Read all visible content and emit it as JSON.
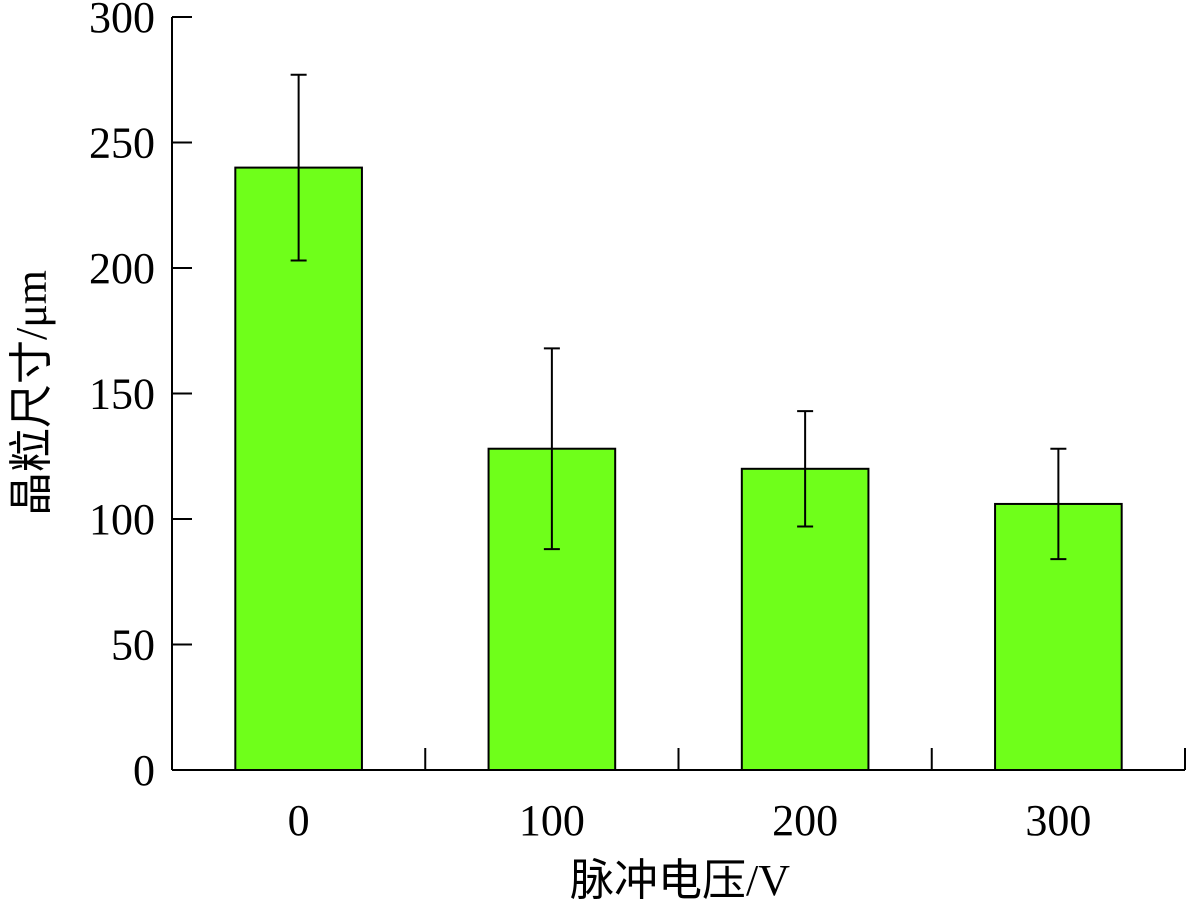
{
  "chart_data": {
    "type": "bar",
    "title": "",
    "xlabel": "脉冲电压/V",
    "ylabel": "晶粒尺寸/μm",
    "categories": [
      "0",
      "100",
      "200",
      "300"
    ],
    "series": [
      {
        "values": [
          240,
          128,
          120,
          106
        ],
        "error_low": [
          203,
          88,
          97,
          84
        ],
        "error_high": [
          277,
          168,
          143,
          128
        ]
      }
    ],
    "ylim": [
      0,
      300
    ],
    "yticks": [
      "0",
      "50",
      "100",
      "150",
      "200",
      "250",
      "300"
    ],
    "bar_color": "#6FFF1A",
    "grid": false,
    "legend": "none"
  }
}
